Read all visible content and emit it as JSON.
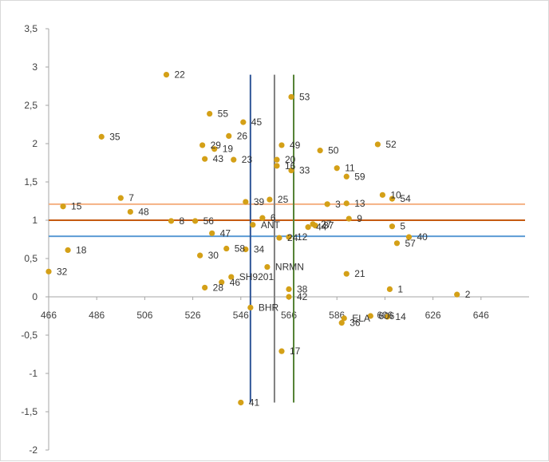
{
  "chart_data": {
    "type": "scatter",
    "title": "",
    "xlabel": "",
    "ylabel": "",
    "xlim": [
      466,
      666
    ],
    "ylim": [
      -2,
      3.5
    ],
    "x_ticks": [
      "466",
      "486",
      "506",
      "526",
      "546",
      "566",
      "586",
      "606",
      "626",
      "646"
    ],
    "y_ticks": [
      "-2",
      "-1,5",
      "-1",
      "-0,5",
      "0",
      "0,5",
      "1",
      "1,5",
      "2",
      "2,5",
      "3",
      "3,5"
    ],
    "grid": false,
    "legend": "none",
    "marker_color": "#D4A017",
    "vertical_lines": [
      {
        "x": 550,
        "y_range": [
          -1.38,
          2.9
        ],
        "color": "#2F5597"
      },
      {
        "x": 560,
        "y_range": [
          -1.38,
          2.9
        ],
        "color": "#7F7F7F"
      },
      {
        "x": 568,
        "y_range": [
          -1.38,
          2.9
        ],
        "color": "#548235"
      }
    ],
    "horizontal_lines": [
      {
        "y": 1.21,
        "color": "#F4B183"
      },
      {
        "y": 1.0,
        "color": "#C55A11"
      },
      {
        "y": 0.79,
        "color": "#5B9BD5"
      }
    ],
    "points": [
      {
        "label": "1",
        "x": 608,
        "y": 0.1
      },
      {
        "label": "2",
        "x": 636,
        "y": 0.03
      },
      {
        "label": "3",
        "x": 582,
        "y": 1.21
      },
      {
        "label": "5",
        "x": 609,
        "y": 0.92
      },
      {
        "label": "6",
        "x": 555,
        "y": 1.03
      },
      {
        "label": "7",
        "x": 496,
        "y": 1.29
      },
      {
        "label": "8",
        "x": 517,
        "y": 0.99
      },
      {
        "label": "9",
        "x": 591,
        "y": 1.02
      },
      {
        "label": "10",
        "x": 605,
        "y": 1.33
      },
      {
        "label": "11",
        "x": 586,
        "y": 1.68
      },
      {
        "label": "12",
        "x": 566,
        "y": 0.78
      },
      {
        "label": "13",
        "x": 590,
        "y": 1.22
      },
      {
        "label": "14",
        "x": 607,
        "y": -0.26
      },
      {
        "label": "15",
        "x": 472,
        "y": 1.18
      },
      {
        "label": "16",
        "x": 561,
        "y": 1.71
      },
      {
        "label": "17",
        "x": 563,
        "y": -0.71
      },
      {
        "label": "18",
        "x": 474,
        "y": 0.61
      },
      {
        "label": "19",
        "x": 535,
        "y": 1.93
      },
      {
        "label": "20",
        "x": 561,
        "y": 1.79
      },
      {
        "label": "21",
        "x": 590,
        "y": 0.3
      },
      {
        "label": "22",
        "x": 515,
        "y": 2.9
      },
      {
        "label": "23",
        "x": 543,
        "y": 1.79
      },
      {
        "label": "24",
        "x": 562,
        "y": 0.77
      },
      {
        "label": "25",
        "x": 558,
        "y": 1.27
      },
      {
        "label": "26",
        "x": 541,
        "y": 2.1
      },
      {
        "label": "27",
        "x": 576,
        "y": 0.95
      },
      {
        "label": "28",
        "x": 531,
        "y": 0.12
      },
      {
        "label": "29",
        "x": 530,
        "y": 1.98
      },
      {
        "label": "30",
        "x": 529,
        "y": 0.54
      },
      {
        "label": "32",
        "x": 466,
        "y": 0.33
      },
      {
        "label": "33",
        "x": 567,
        "y": 1.65
      },
      {
        "label": "34",
        "x": 548,
        "y": 0.62
      },
      {
        "label": "35",
        "x": 488,
        "y": 2.09
      },
      {
        "label": "36",
        "x": 588,
        "y": -0.34
      },
      {
        "label": "37",
        "x": 577,
        "y": 0.93
      },
      {
        "label": "38",
        "x": 566,
        "y": 0.1
      },
      {
        "label": "39",
        "x": 548,
        "y": 1.24
      },
      {
        "label": "40",
        "x": 616,
        "y": 0.78
      },
      {
        "label": "41",
        "x": 546,
        "y": -1.38
      },
      {
        "label": "42",
        "x": 566,
        "y": 0.0
      },
      {
        "label": "43",
        "x": 531,
        "y": 1.8
      },
      {
        "label": "44",
        "x": 574,
        "y": 0.91
      },
      {
        "label": "45",
        "x": 547,
        "y": 2.28
      },
      {
        "label": "46",
        "x": 538,
        "y": 0.19
      },
      {
        "label": "47",
        "x": 534,
        "y": 0.83
      },
      {
        "label": "48",
        "x": 500,
        "y": 1.11
      },
      {
        "label": "49",
        "x": 563,
        "y": 1.98
      },
      {
        "label": "50",
        "x": 579,
        "y": 1.91
      },
      {
        "label": "52",
        "x": 603,
        "y": 1.99
      },
      {
        "label": "53",
        "x": 567,
        "y": 2.61
      },
      {
        "label": "54",
        "x": 609,
        "y": 1.28
      },
      {
        "label": "55",
        "x": 533,
        "y": 2.39
      },
      {
        "label": "56",
        "x": 527,
        "y": 0.99
      },
      {
        "label": "57",
        "x": 611,
        "y": 0.7
      },
      {
        "label": "58",
        "x": 540,
        "y": 0.63
      },
      {
        "label": "59",
        "x": 590,
        "y": 1.57
      },
      {
        "label": "ANT",
        "x": 551,
        "y": 0.94
      },
      {
        "label": "NRMN",
        "x": 557,
        "y": 0.39
      },
      {
        "label": "SH9201",
        "x": 542,
        "y": 0.26
      },
      {
        "label": "BHR",
        "x": 550,
        "y": -0.14
      },
      {
        "label": "ELA",
        "x": 589,
        "y": -0.28
      },
      {
        "label": "606",
        "x": 600,
        "y": -0.25
      }
    ]
  }
}
